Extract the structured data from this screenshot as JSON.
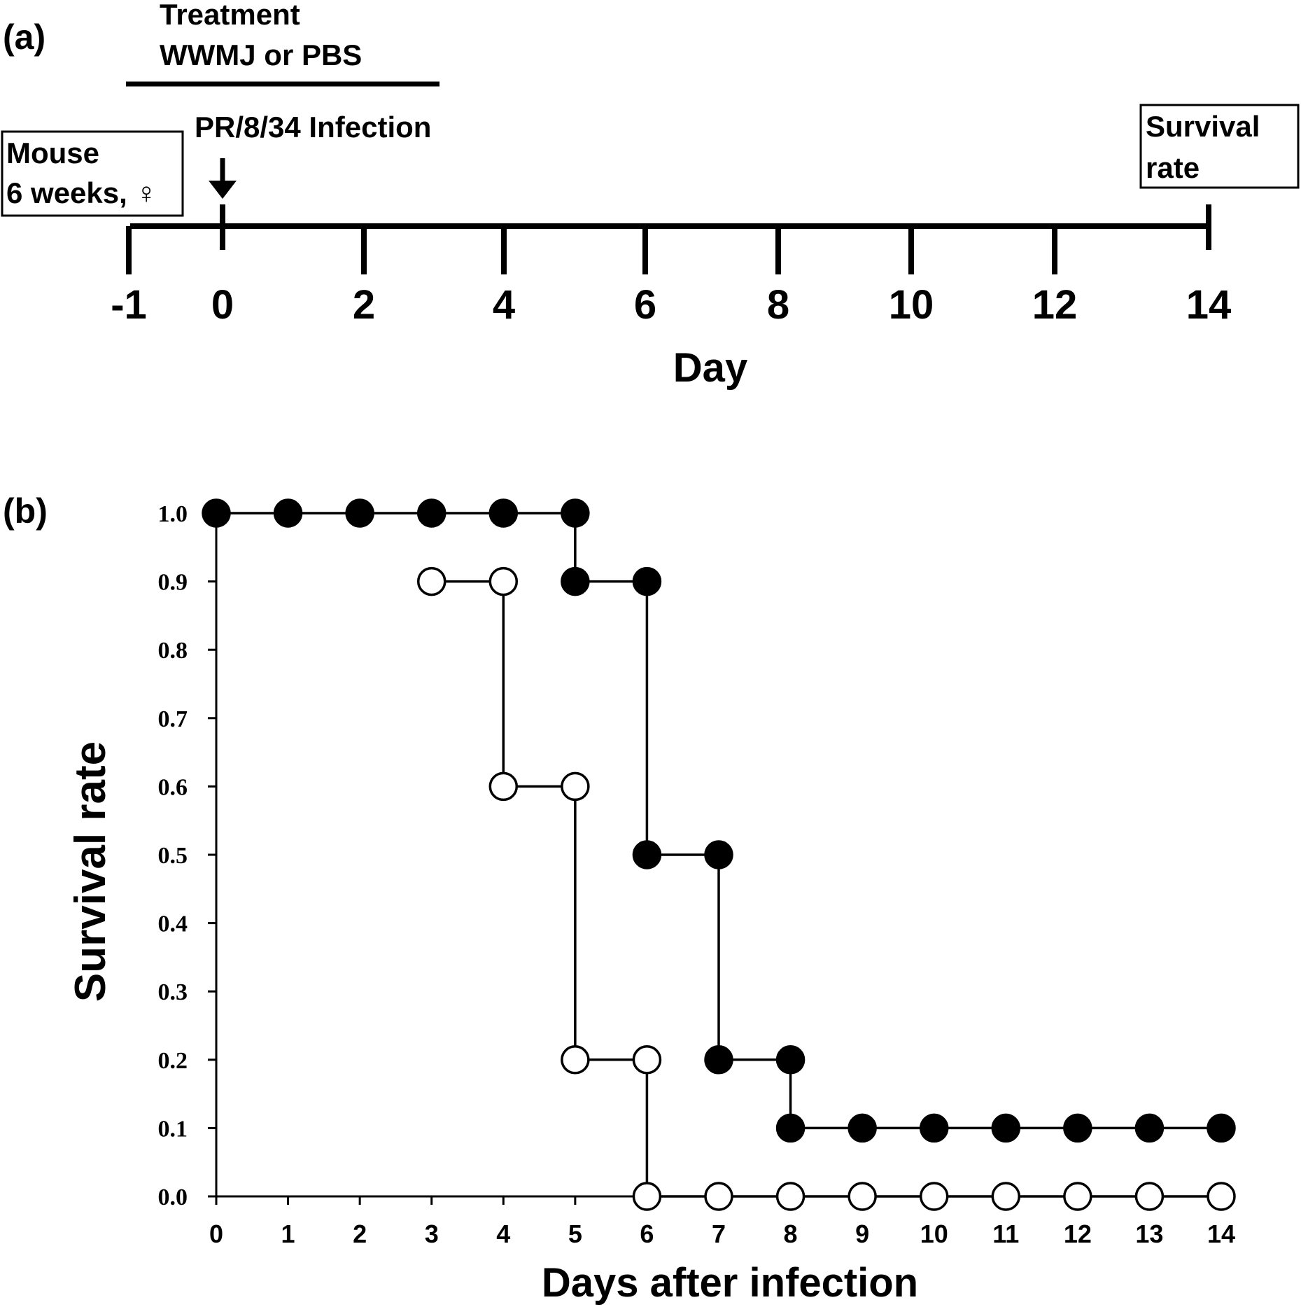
{
  "panel_a": {
    "label": "(a)",
    "treatment_line1": "Treatment",
    "treatment_line2": "WWMJ or PBS",
    "infection_label": "PR/8/34 Infection",
    "mouse_line1": "Mouse",
    "mouse_line2": "6 weeks, ♀",
    "survival_line1": "Survival",
    "survival_line2": "rate",
    "axis_label": "Day",
    "ticks": [
      "-1",
      "0",
      "2",
      "4",
      "6",
      "8",
      "10",
      "12",
      "14"
    ]
  },
  "panel_b": {
    "label": "(b)"
  },
  "chart_data": {
    "type": "line",
    "step": "post",
    "xlabel": "Days after infection",
    "ylabel": "Survival rate",
    "xlim": [
      0,
      14
    ],
    "ylim": [
      0,
      1
    ],
    "x_ticks": [
      "0",
      "1",
      "2",
      "3",
      "4",
      "5",
      "6",
      "7",
      "8",
      "9",
      "10",
      "11",
      "12",
      "13",
      "14"
    ],
    "y_ticks": [
      "0.0",
      "0.1",
      "0.2",
      "0.3",
      "0.4",
      "0.5",
      "0.6",
      "0.7",
      "0.8",
      "0.9",
      "1.0"
    ],
    "grid": false,
    "legend": "none",
    "series": [
      {
        "marker": "filled-circle",
        "color": "#000000",
        "points": [
          [
            0,
            1.0
          ],
          [
            1,
            1.0
          ],
          [
            2,
            1.0
          ],
          [
            3,
            1.0
          ],
          [
            4,
            1.0
          ],
          [
            5,
            1.0
          ],
          [
            5,
            0.9
          ],
          [
            6,
            0.9
          ],
          [
            6,
            0.5
          ],
          [
            7,
            0.5
          ],
          [
            7,
            0.2
          ],
          [
            8,
            0.2
          ],
          [
            8,
            0.1
          ],
          [
            9,
            0.1
          ],
          [
            10,
            0.1
          ],
          [
            11,
            0.1
          ],
          [
            12,
            0.1
          ],
          [
            13,
            0.1
          ],
          [
            14,
            0.1
          ]
        ]
      },
      {
        "marker": "open-circle",
        "color": "#000000",
        "points": [
          [
            3,
            0.9
          ],
          [
            4,
            0.9
          ],
          [
            4,
            0.6
          ],
          [
            5,
            0.6
          ],
          [
            5,
            0.2
          ],
          [
            6,
            0.2
          ],
          [
            6,
            0.0
          ],
          [
            7,
            0.0
          ],
          [
            8,
            0.0
          ],
          [
            9,
            0.0
          ],
          [
            10,
            0.0
          ],
          [
            11,
            0.0
          ],
          [
            12,
            0.0
          ],
          [
            13,
            0.0
          ],
          [
            14,
            0.0
          ]
        ]
      }
    ]
  }
}
